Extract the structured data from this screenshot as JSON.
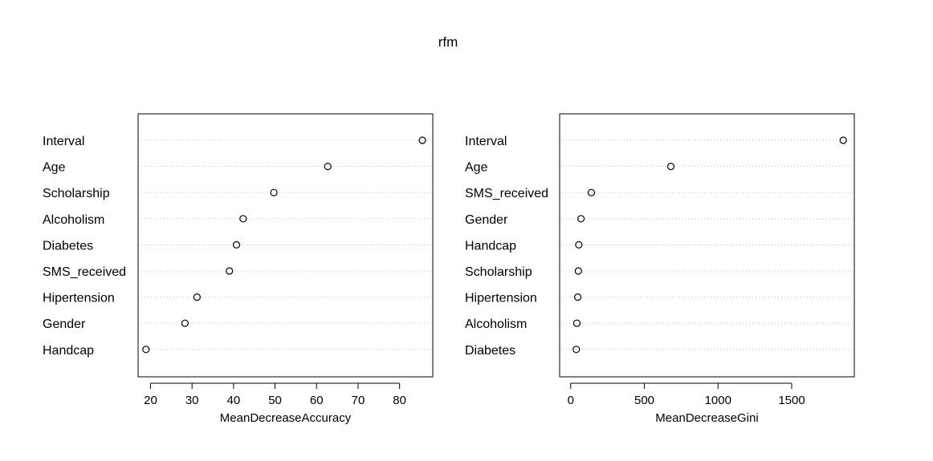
{
  "title": "rfm",
  "chart_data": [
    {
      "type": "scatter",
      "xlabel": "MeanDecreaseAccuracy",
      "ylabel": "",
      "xlim": [
        17,
        88
      ],
      "xticks": [
        20,
        30,
        40,
        50,
        60,
        70,
        80
      ],
      "grid": "horizontal dotted",
      "categories": [
        "Interval",
        "Age",
        "Scholarship",
        "Alcoholism",
        "Diabetes",
        "SMS_received",
        "Hipertension",
        "Gender",
        "Handcap"
      ],
      "values": [
        85.5,
        62.7,
        49.7,
        42.3,
        40.7,
        39.0,
        31.2,
        28.3,
        18.9
      ]
    },
    {
      "type": "scatter",
      "xlabel": "MeanDecreaseGini",
      "ylabel": "",
      "xlim": [
        -75,
        1925
      ],
      "xticks": [
        0,
        500,
        1000,
        1500
      ],
      "grid": "horizontal dotted",
      "categories": [
        "Interval",
        "Age",
        "SMS_received",
        "Gender",
        "Handcap",
        "Scholarship",
        "Hipertension",
        "Alcoholism",
        "Diabetes"
      ],
      "values": [
        1850,
        680,
        140,
        70,
        55,
        52,
        48,
        42,
        38
      ]
    }
  ]
}
